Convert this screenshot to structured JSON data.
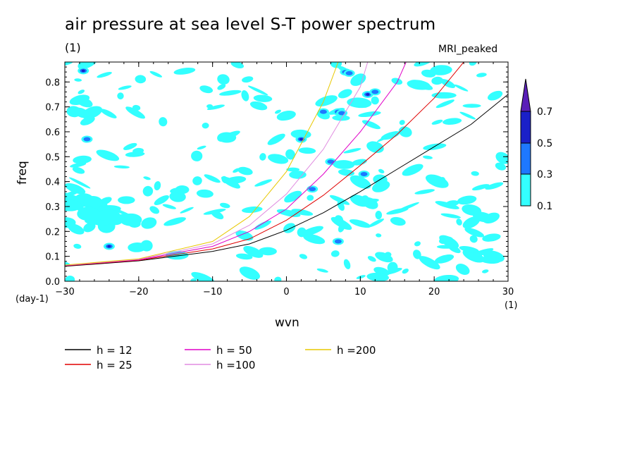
{
  "title": "air pressure at sea level S-T power spectrum",
  "subtitle": "(1)",
  "model_label": "MRI_peaked",
  "chart_data": {
    "type": "contour",
    "xlabel": "wvn",
    "ylabel": "freq",
    "x_unit_label": "(1)",
    "y_unit_label": "(day-1)",
    "xlim": [
      -30,
      30
    ],
    "ylim": [
      0,
      0.88
    ],
    "xticks": [
      -30,
      -20,
      -10,
      0,
      10,
      20,
      30
    ],
    "yticks": [
      0.0,
      0.1,
      0.2,
      0.3,
      0.4,
      0.5,
      0.6,
      0.7,
      0.8
    ],
    "ytick_labels": [
      "0.0",
      "0.1",
      "0.2",
      "0.3",
      "0.4",
      "0.5",
      "0.6",
      "0.7",
      "0.8"
    ],
    "colorbar": {
      "levels": [
        "0.1",
        "0.3",
        "0.5",
        "0.7"
      ],
      "colors": [
        "#33ffff",
        "#1e78ff",
        "#1a20c8",
        "#5a1fb8"
      ]
    },
    "dispersion_curves": [
      {
        "name": "h = 12",
        "color": "#000000",
        "points": [
          [
            -30,
            0.06
          ],
          [
            -20,
            0.082
          ],
          [
            -10,
            0.12
          ],
          [
            -5,
            0.15
          ],
          [
            0,
            0.205
          ],
          [
            5,
            0.275
          ],
          [
            10,
            0.36
          ],
          [
            15,
            0.45
          ],
          [
            20,
            0.54
          ],
          [
            25,
            0.63
          ],
          [
            30,
            0.75
          ]
        ]
      },
      {
        "name": "h = 25",
        "color": "#e00000",
        "points": [
          [
            -30,
            0.062
          ],
          [
            -20,
            0.084
          ],
          [
            -10,
            0.13
          ],
          [
            -5,
            0.17
          ],
          [
            0,
            0.245
          ],
          [
            5,
            0.345
          ],
          [
            10,
            0.465
          ],
          [
            15,
            0.59
          ],
          [
            20,
            0.735
          ],
          [
            24,
            0.88
          ]
        ]
      },
      {
        "name": "h = 50",
        "color": "#e000c8",
        "points": [
          [
            -30,
            0.063
          ],
          [
            -20,
            0.086
          ],
          [
            -10,
            0.14
          ],
          [
            -5,
            0.2
          ],
          [
            0,
            0.29
          ],
          [
            5,
            0.43
          ],
          [
            10,
            0.6
          ],
          [
            15,
            0.8
          ],
          [
            16.2,
            0.88
          ]
        ]
      },
      {
        "name": "h =100",
        "color": "#e08ce0",
        "points": [
          [
            -30,
            0.064
          ],
          [
            -20,
            0.088
          ],
          [
            -10,
            0.15
          ],
          [
            -5,
            0.225
          ],
          [
            0,
            0.35
          ],
          [
            5,
            0.53
          ],
          [
            10,
            0.78
          ],
          [
            11,
            0.88
          ]
        ]
      },
      {
        "name": "h =200",
        "color": "#e8c800",
        "points": [
          [
            -30,
            0.065
          ],
          [
            -20,
            0.09
          ],
          [
            -10,
            0.16
          ],
          [
            -5,
            0.26
          ],
          [
            0,
            0.44
          ],
          [
            5,
            0.72
          ],
          [
            7,
            0.88
          ]
        ]
      }
    ],
    "high_power_regions": [
      {
        "level": "0.7",
        "x": [
          [
            8,
            0.84
          ],
          [
            7,
            0.68
          ],
          [
            2,
            0.57
          ],
          [
            -27.5,
            0.845
          ],
          [
            -24,
            0.14
          ],
          [
            11,
            0.75
          ]
        ]
      },
      {
        "level": "0.5",
        "x": [
          [
            8.5,
            0.835
          ],
          [
            7.5,
            0.675
          ],
          [
            12,
            0.76
          ],
          [
            5,
            0.68
          ],
          [
            6,
            0.48
          ],
          [
            3.5,
            0.37
          ],
          [
            10.5,
            0.43
          ],
          [
            7,
            0.16
          ],
          [
            -27,
            0.57
          ]
        ]
      }
    ]
  },
  "legend": [
    {
      "label": "h = 12",
      "color": "#000000"
    },
    {
      "label": "h = 25",
      "color": "#e00000"
    },
    {
      "label": "h = 50",
      "color": "#e000c8"
    },
    {
      "label": "h =100",
      "color": "#e08ce0"
    },
    {
      "label": "h =200",
      "color": "#e8c800"
    }
  ]
}
